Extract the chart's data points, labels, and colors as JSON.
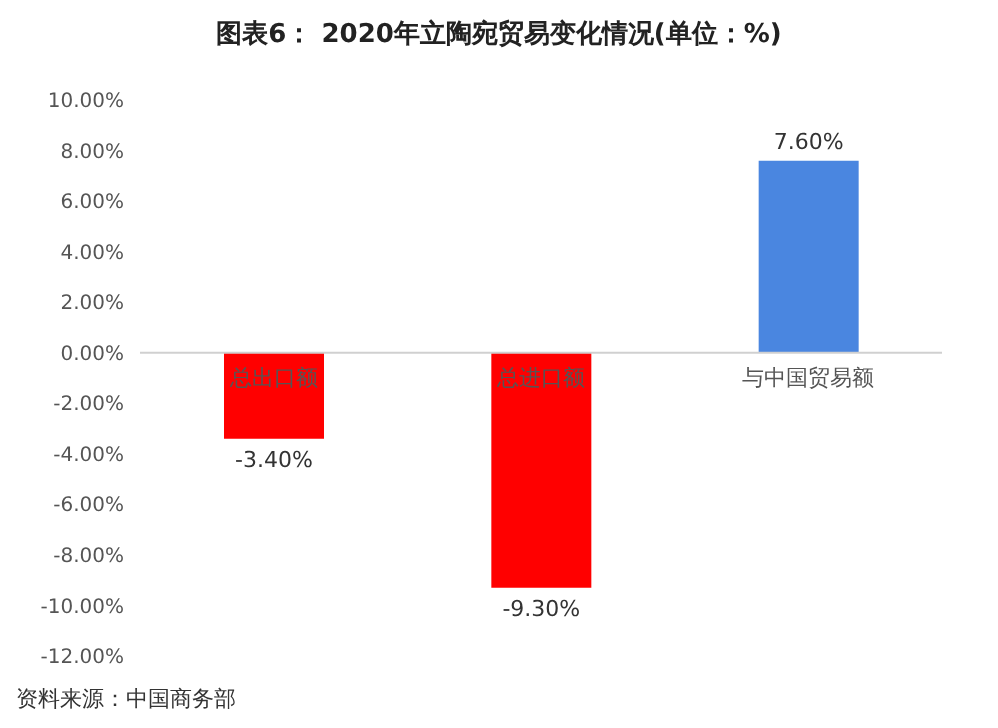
{
  "chart_data": {
    "type": "bar",
    "title": "图表6： 2020年立陶宛贸易变化情况(单位：%)",
    "categories": [
      "总出口额",
      "总进口额",
      "与中国贸易额"
    ],
    "values": [
      -3.4,
      -9.3,
      7.6
    ],
    "colors": [
      "#ff0000",
      "#ff0000",
      "#4a86e0"
    ],
    "value_labels": [
      "-3.40%",
      "-9.30%",
      "7.60%"
    ],
    "ylim": [
      -12,
      10
    ],
    "yticks": [
      {
        "value": -12,
        "label": "-12.00%"
      },
      {
        "value": -10,
        "label": "-10.00%"
      },
      {
        "value": -8,
        "label": "-8.00%"
      },
      {
        "value": -6,
        "label": "-6.00%"
      },
      {
        "value": -4,
        "label": "-4.00%"
      },
      {
        "value": -2,
        "label": "-2.00%"
      },
      {
        "value": 0,
        "label": "0.00%"
      },
      {
        "value": 2,
        "label": "2.00%"
      },
      {
        "value": 4,
        "label": "4.00%"
      },
      {
        "value": 6,
        "label": "6.00%"
      },
      {
        "value": 8,
        "label": "8.00%"
      },
      {
        "value": 10,
        "label": "10.00%"
      }
    ],
    "grid": false,
    "annotations": [
      "资料来源：中国商务部"
    ]
  }
}
